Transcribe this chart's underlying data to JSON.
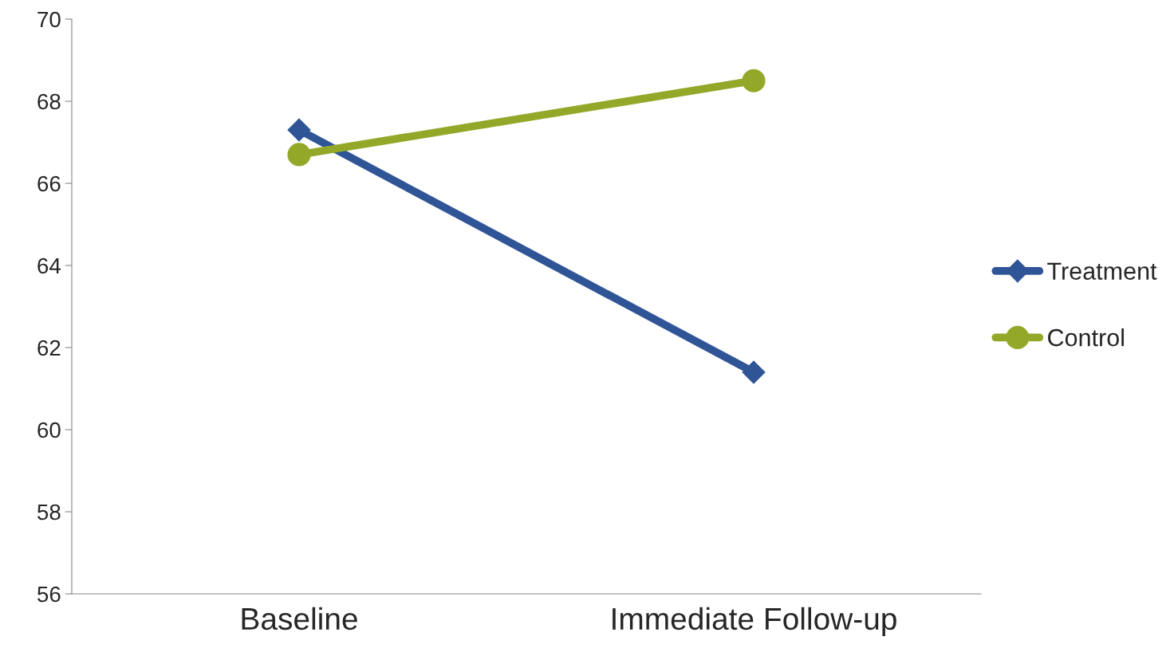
{
  "chart_data": {
    "type": "line",
    "categories": [
      "Baseline",
      "Immediate Follow-up"
    ],
    "series": [
      {
        "name": "Treatment",
        "color": "#2f5597",
        "values": [
          67.3,
          61.4
        ],
        "marker": "diamond"
      },
      {
        "name": "Control",
        "color": "#93a829",
        "values": [
          66.7,
          68.5
        ],
        "marker": "circle"
      }
    ],
    "ylim": [
      56,
      70
    ],
    "yticks": [
      56,
      58,
      60,
      62,
      64,
      66,
      68,
      70
    ],
    "grid": false,
    "legend": "right",
    "line_style": "solid"
  }
}
